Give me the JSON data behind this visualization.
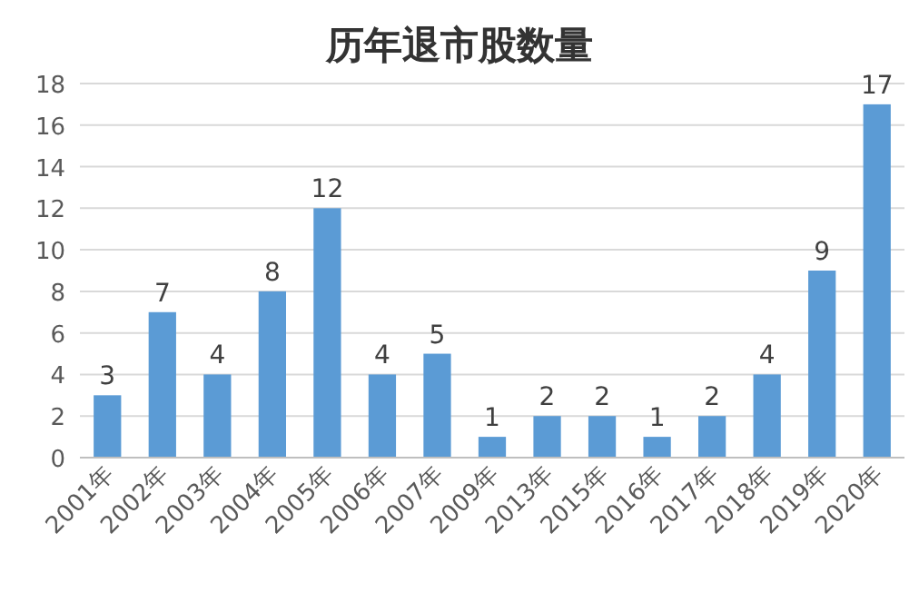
{
  "chart_data": {
    "type": "bar",
    "title": "历年退市股数量",
    "categories": [
      "2001年",
      "2002年",
      "2003年",
      "2004年",
      "2005年",
      "2006年",
      "2007年",
      "2009年",
      "2013年",
      "2015年",
      "2016年",
      "2017年",
      "2018年",
      "2019年",
      "2020年"
    ],
    "values": [
      3,
      7,
      4,
      8,
      12,
      4,
      5,
      1,
      2,
      2,
      1,
      2,
      4,
      9,
      17
    ],
    "color": "#5b9bd5",
    "ylim": [
      0,
      18
    ],
    "yticks": [
      0,
      2,
      4,
      6,
      8,
      10,
      12,
      14,
      16,
      18
    ],
    "grid": "y",
    "data_labels": true
  }
}
